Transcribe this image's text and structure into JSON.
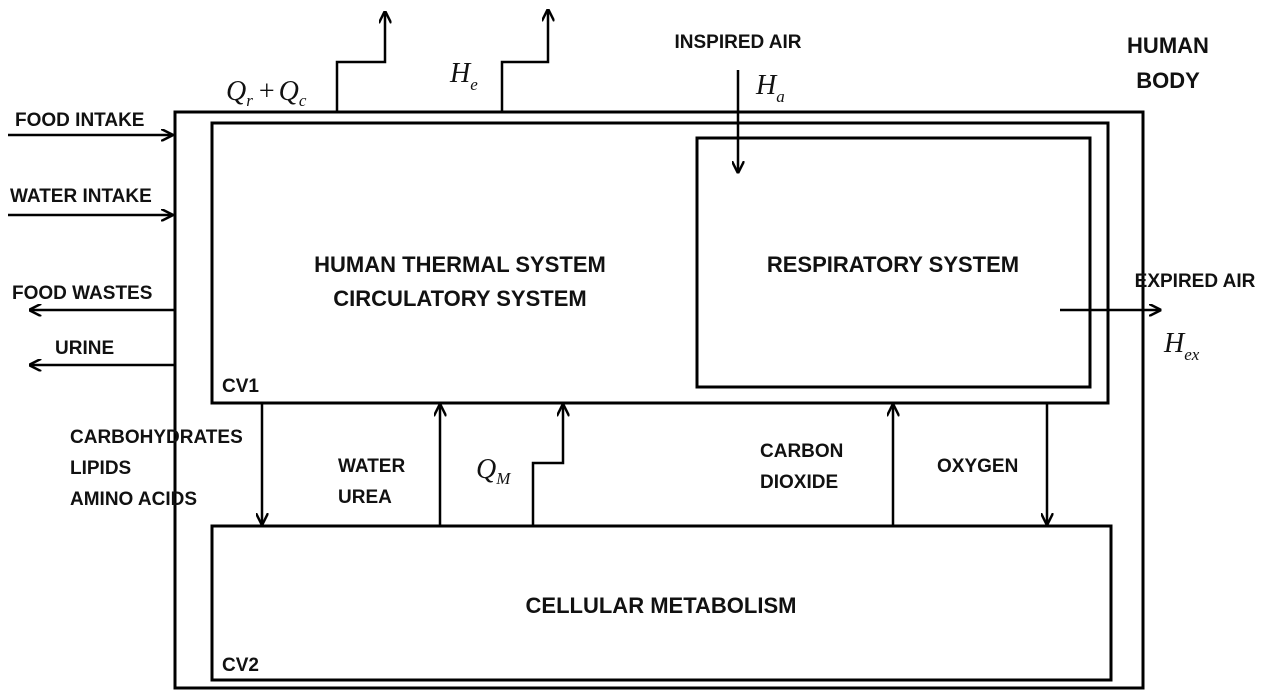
{
  "human_body": {
    "lines": [
      "HUMAN",
      "BODY"
    ]
  },
  "cv1": {
    "label": "CV1",
    "thermal_lines": [
      "HUMAN THERMAL SYSTEM",
      "CIRCULATORY SYSTEM"
    ],
    "respiratory": "RESPIRATORY SYSTEM"
  },
  "cv2": {
    "label": "CV2",
    "title": "CELLULAR METABOLISM"
  },
  "inputs": [
    "FOOD INTAKE",
    "WATER INTAKE"
  ],
  "outputs": [
    "FOOD WASTES",
    "URINE"
  ],
  "heat_loss": {
    "first": {
      "symbol": "Q",
      "sub": "r"
    },
    "operator": "+",
    "second": {
      "symbol": "Q",
      "sub": "c"
    }
  },
  "evaporation": {
    "symbol": "H",
    "sub": "e"
  },
  "inspired_air": {
    "label": "INSPIRED AIR",
    "symbol": "H",
    "sub": "a"
  },
  "expired_air": {
    "label": "EXPIRED AIR",
    "symbol": "H",
    "sub": "ex"
  },
  "nutrients": [
    "CARBOHYDRATES",
    "LIPIDS",
    "AMINO ACIDS"
  ],
  "wastes": [
    "WATER",
    "UREA"
  ],
  "metabolic_heat": {
    "symbol": "Q",
    "sub": "M"
  },
  "carbon_dioxide": [
    "CARBON",
    "DIOXIDE"
  ],
  "oxygen": "OXYGEN"
}
